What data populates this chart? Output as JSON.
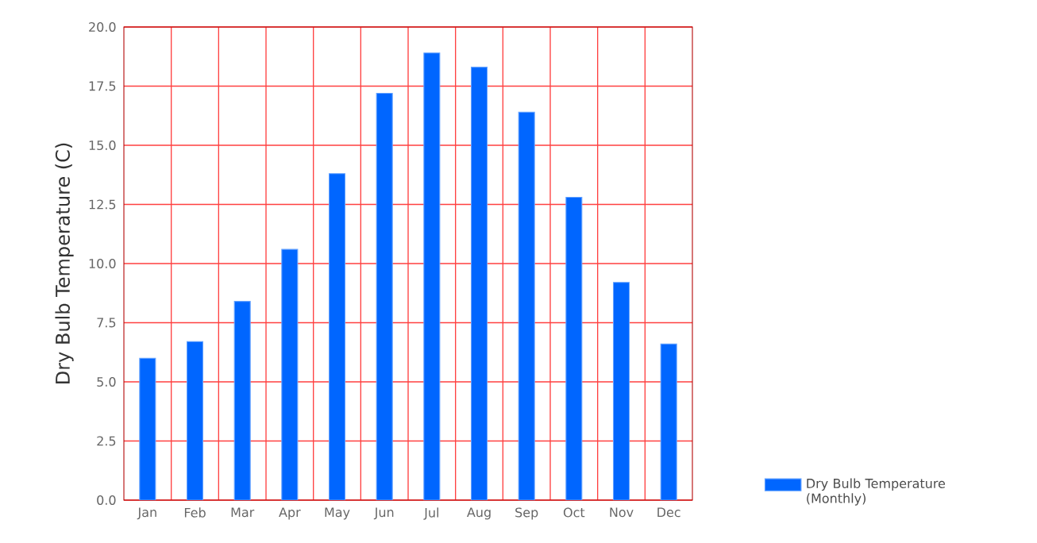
{
  "chart_data": {
    "type": "bar",
    "ylabel": "Dry Bulb Temperature (C)",
    "categories": [
      "Jan",
      "Feb",
      "Mar",
      "Apr",
      "May",
      "Jun",
      "Jul",
      "Aug",
      "Sep",
      "Oct",
      "Nov",
      "Dec"
    ],
    "series": [
      {
        "name": "Dry Bulb Temperature (Monthly)",
        "color": "#0066ff",
        "values": [
          6.0,
          6.7,
          8.4,
          10.6,
          13.8,
          17.2,
          18.9,
          18.3,
          16.4,
          12.8,
          9.2,
          6.6
        ]
      }
    ],
    "ylim": [
      0,
      20
    ],
    "yticks": [
      {
        "value": 0,
        "label": "0.0"
      },
      {
        "value": 2.5,
        "label": "2.5"
      },
      {
        "value": 5,
        "label": "5.0"
      },
      {
        "value": 7.5,
        "label": "7.5"
      },
      {
        "value": 10,
        "label": "10.0"
      },
      {
        "value": 12.5,
        "label": "12.5"
      },
      {
        "value": 15,
        "label": "15.0"
      },
      {
        "value": 17.5,
        "label": "17.5"
      },
      {
        "value": 20,
        "label": "20.0"
      }
    ],
    "grid": true,
    "legend": "bottom right"
  }
}
